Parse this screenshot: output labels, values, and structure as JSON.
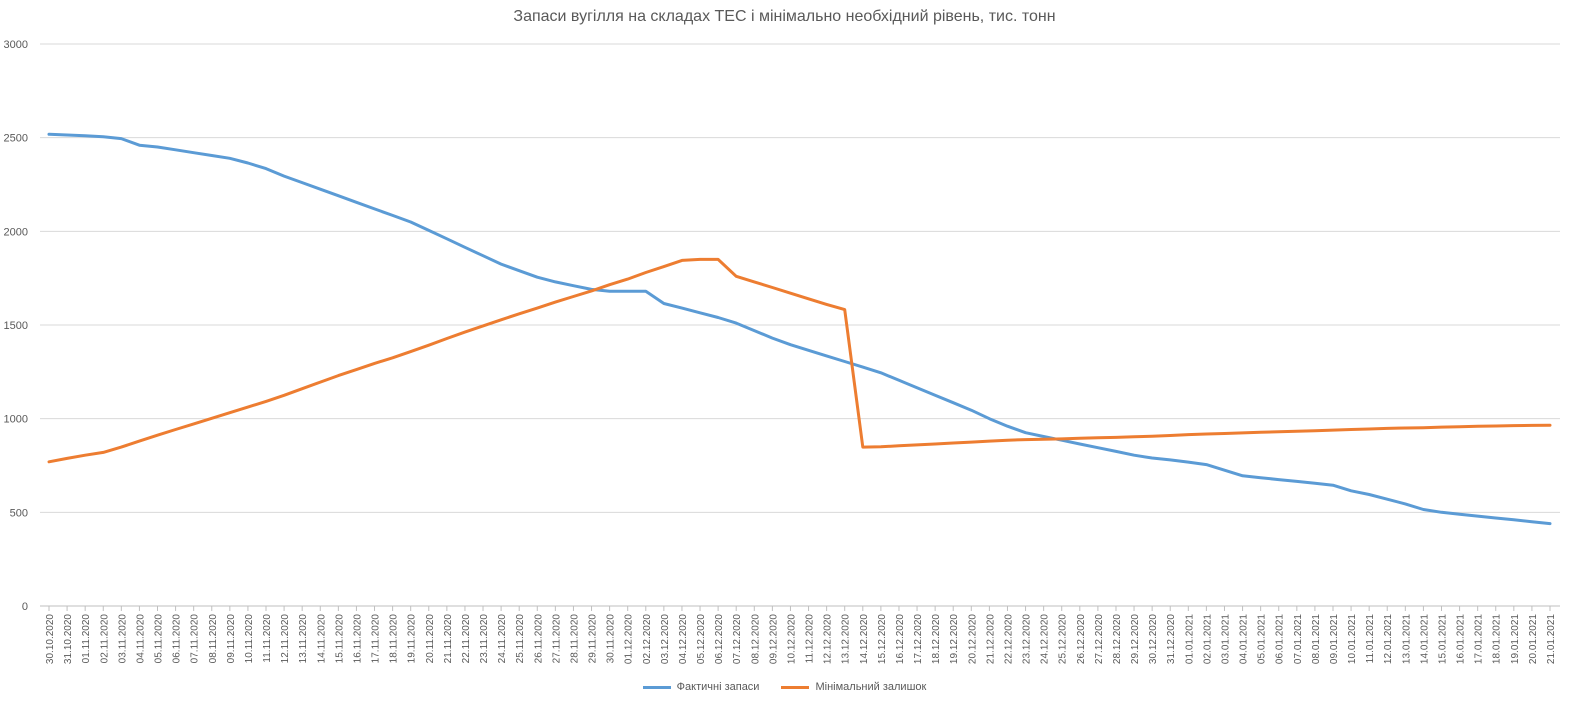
{
  "chart_data": {
    "type": "line",
    "title": "Запаси вугілля на складах ТЕС і мінімально необхідний рівень, тис. тонн",
    "ylim": [
      0,
      3000
    ],
    "yticks": [
      0,
      500,
      1000,
      1500,
      2000,
      2500,
      3000
    ],
    "grid": true,
    "legend_position": "bottom",
    "categories": [
      "30.10.2020",
      "31.10.2020",
      "01.11.2020",
      "02.11.2020",
      "03.11.2020",
      "04.11.2020",
      "05.11.2020",
      "06.11.2020",
      "07.11.2020",
      "08.11.2020",
      "09.11.2020",
      "10.11.2020",
      "11.11.2020",
      "12.11.2020",
      "13.11.2020",
      "14.11.2020",
      "15.11.2020",
      "16.11.2020",
      "17.11.2020",
      "18.11.2020",
      "19.11.2020",
      "20.11.2020",
      "21.11.2020",
      "22.11.2020",
      "23.11.2020",
      "24.11.2020",
      "25.11.2020",
      "26.11.2020",
      "27.11.2020",
      "28.11.2020",
      "29.11.2020",
      "30.11.2020",
      "01.12.2020",
      "02.12.2020",
      "03.12.2020",
      "04.12.2020",
      "05.12.2020",
      "06.12.2020",
      "07.12.2020",
      "08.12.2020",
      "09.12.2020",
      "10.12.2020",
      "11.12.2020",
      "12.12.2020",
      "13.12.2020",
      "14.12.2020",
      "15.12.2020",
      "16.12.2020",
      "17.12.2020",
      "18.12.2020",
      "19.12.2020",
      "20.12.2020",
      "21.12.2020",
      "22.12.2020",
      "23.12.2020",
      "24.12.2020",
      "25.12.2020",
      "26.12.2020",
      "27.12.2020",
      "28.12.2020",
      "29.12.2020",
      "30.12.2020",
      "31.12.2020",
      "01.01.2021",
      "02.01.2021",
      "03.01.2021",
      "04.01.2021",
      "05.01.2021",
      "06.01.2021",
      "07.01.2021",
      "08.01.2021",
      "09.01.2021",
      "10.01.2021",
      "11.01.2021",
      "12.01.2021",
      "13.01.2021",
      "14.01.2021",
      "15.01.2021",
      "16.01.2021",
      "17.01.2021",
      "18.01.2021",
      "19.01.2021",
      "20.01.2021",
      "21.01.2021"
    ],
    "series": [
      {
        "name": "Фактичні запаси",
        "color": "#5b9bd5",
        "values": [
          2518,
          2514,
          2510,
          2505,
          2495,
          2460,
          2450,
          2435,
          2420,
          2405,
          2390,
          2365,
          2335,
          2295,
          2260,
          2225,
          2190,
          2155,
          2120,
          2085,
          2050,
          2005,
          1960,
          1915,
          1870,
          1825,
          1790,
          1755,
          1730,
          1710,
          1690,
          1680,
          1680,
          1680,
          1615,
          1590,
          1565,
          1540,
          1510,
          1470,
          1430,
          1395,
          1365,
          1335,
          1305,
          1275,
          1245,
          1205,
          1165,
          1125,
          1085,
          1045,
          1000,
          960,
          925,
          905,
          885,
          865,
          845,
          825,
          805,
          790,
          780,
          768,
          755,
          725,
          695,
          685,
          675,
          665,
          655,
          645,
          615,
          595,
          570,
          545,
          515,
          500,
          490,
          480,
          470,
          460,
          450,
          440
        ],
        "line_values_note": ""
      },
      {
        "name": "Мінімальний залишок",
        "color": "#ed7d31",
        "values": [
          770,
          788,
          805,
          820,
          848,
          880,
          912,
          942,
          972,
          1002,
          1032,
          1062,
          1092,
          1125,
          1160,
          1195,
          1230,
          1262,
          1295,
          1325,
          1358,
          1392,
          1428,
          1462,
          1495,
          1528,
          1560,
          1590,
          1622,
          1652,
          1682,
          1715,
          1745,
          1780,
          1812,
          1845,
          1850,
          1850,
          1760,
          1730,
          1700,
          1670,
          1640,
          1610,
          1582,
          848,
          850,
          855,
          860,
          865,
          870,
          875,
          880,
          885,
          888,
          890,
          892,
          895,
          898,
          900,
          903,
          906,
          910,
          915,
          918,
          921,
          924,
          927,
          930,
          933,
          936,
          939,
          942,
          945,
          948,
          950,
          952,
          955,
          957,
          959,
          961,
          963,
          964,
          965
        ]
      }
    ]
  }
}
